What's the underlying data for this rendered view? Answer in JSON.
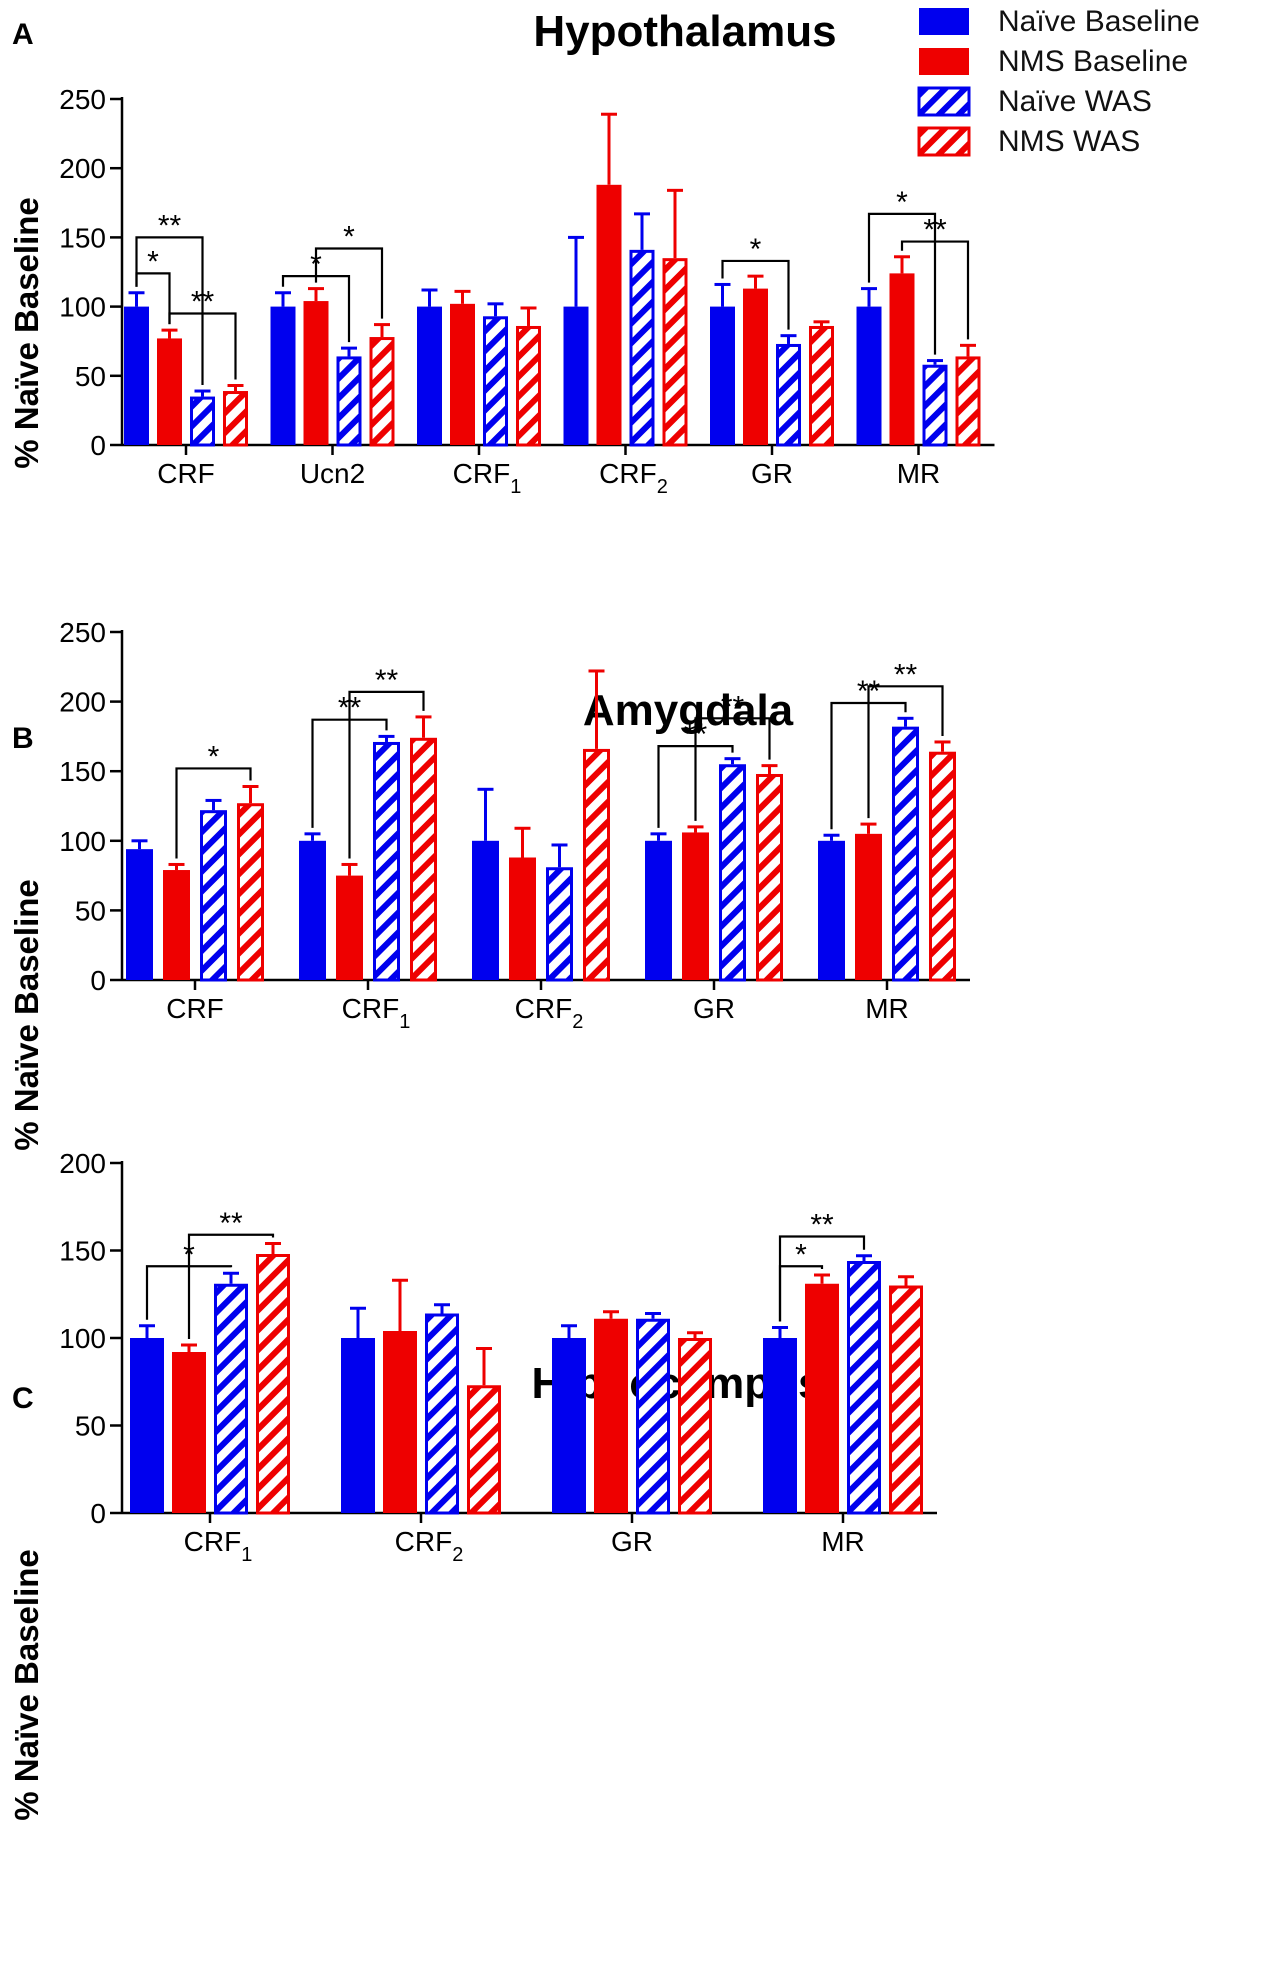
{
  "legend": {
    "items": [
      {
        "label": "Naïve Baseline",
        "color": "#0000ee",
        "hatched": false
      },
      {
        "label": "NMS Baseline",
        "color": "#ee0000",
        "hatched": false
      },
      {
        "label": "Naïve WAS",
        "color": "#0000ee",
        "hatched": true
      },
      {
        "label": "NMS WAS",
        "color": "#ee0000",
        "hatched": true
      }
    ]
  },
  "chart_data": [
    {
      "panel_label": "A",
      "type": "bar",
      "title": "Hypothalamus",
      "ylabel": "% Naïve Baseline",
      "ylim": [
        0,
        250
      ],
      "yticks": [
        0,
        50,
        100,
        150,
        200,
        250
      ],
      "categories": [
        {
          "base": "CRF",
          "sub": ""
        },
        {
          "base": "Ucn2",
          "sub": ""
        },
        {
          "base": "CRF",
          "sub": "1"
        },
        {
          "base": "CRF",
          "sub": "2"
        },
        {
          "base": "GR",
          "sub": ""
        },
        {
          "base": "MR",
          "sub": ""
        }
      ],
      "series": [
        {
          "name": "Naïve Baseline",
          "values": [
            100,
            100,
            100,
            100,
            100,
            100
          ],
          "errors": [
            10,
            10,
            12,
            50,
            16,
            13
          ]
        },
        {
          "name": "NMS Baseline",
          "values": [
            77,
            104,
            102,
            188,
            113,
            124
          ],
          "errors": [
            6,
            9,
            9,
            51,
            9,
            12
          ]
        },
        {
          "name": "Naïve WAS",
          "values": [
            35,
            64,
            93,
            141,
            73,
            58
          ],
          "errors": [
            4,
            6,
            9,
            26,
            6,
            3
          ]
        },
        {
          "name": "NMS WAS",
          "values": [
            39,
            78,
            86,
            135,
            86,
            64
          ],
          "errors": [
            4,
            9,
            13,
            49,
            3,
            8
          ]
        }
      ],
      "annotations": [
        {
          "label": "**",
          "cat": 0,
          "from": 0,
          "to": 2,
          "level": 150
        },
        {
          "label": "*",
          "cat": 0,
          "from": 0,
          "to": 1,
          "level": 124
        },
        {
          "label": "**",
          "cat": 0,
          "from": 1,
          "to": 3,
          "level": 95
        },
        {
          "label": "*",
          "cat": 1,
          "from": 1,
          "to": 3,
          "level": 142
        },
        {
          "label": "*",
          "cat": 1,
          "from": 0,
          "to": 2,
          "level": 122
        },
        {
          "label": "*",
          "cat": 4,
          "from": 0,
          "to": 2,
          "level": 133
        },
        {
          "label": "*",
          "cat": 5,
          "from": 0,
          "to": 2,
          "level": 167
        },
        {
          "label": "**",
          "cat": 5,
          "from": 1,
          "to": 3,
          "level": 147
        }
      ]
    },
    {
      "panel_label": "B",
      "type": "bar",
      "title": "Amygdala",
      "ylabel": "% Naïve Baseline",
      "ylim": [
        0,
        250
      ],
      "yticks": [
        0,
        50,
        100,
        150,
        200,
        250
      ],
      "categories": [
        {
          "base": "CRF",
          "sub": ""
        },
        {
          "base": "CRF",
          "sub": "1"
        },
        {
          "base": "CRF",
          "sub": "2"
        },
        {
          "base": "GR",
          "sub": ""
        },
        {
          "base": "MR",
          "sub": ""
        }
      ],
      "series": [
        {
          "name": "Naïve Baseline",
          "values": [
            94,
            100,
            100,
            100,
            100
          ],
          "errors": [
            6,
            5,
            37,
            5,
            4
          ]
        },
        {
          "name": "NMS Baseline",
          "values": [
            79,
            75,
            88,
            106,
            105
          ],
          "errors": [
            4,
            8,
            21,
            4,
            7
          ]
        },
        {
          "name": "Naïve WAS",
          "values": [
            122,
            171,
            81,
            155,
            182
          ],
          "errors": [
            7,
            4,
            16,
            4,
            6
          ]
        },
        {
          "name": "NMS WAS",
          "values": [
            127,
            174,
            166,
            148,
            164
          ],
          "errors": [
            12,
            15,
            56,
            6,
            7
          ]
        }
      ],
      "annotations": [
        {
          "label": "*",
          "cat": 0,
          "from": 1,
          "to": 3,
          "level": 152
        },
        {
          "label": "**",
          "cat": 1,
          "from": 1,
          "to": 3,
          "level": 207
        },
        {
          "label": "**",
          "cat": 1,
          "from": 0,
          "to": 2,
          "level": 187
        },
        {
          "label": "**",
          "cat": 3,
          "from": 1,
          "to": 3,
          "level": 188
        },
        {
          "label": "**",
          "cat": 3,
          "from": 0,
          "to": 2,
          "level": 168
        },
        {
          "label": "**",
          "cat": 4,
          "from": 1,
          "to": 3,
          "level": 211
        },
        {
          "label": "**",
          "cat": 4,
          "from": 0,
          "to": 2,
          "level": 199
        }
      ]
    },
    {
      "panel_label": "C",
      "type": "bar",
      "title": "Hippocampus",
      "ylabel": "% Naïve Baseline",
      "ylim": [
        0,
        200
      ],
      "yticks": [
        0,
        50,
        100,
        150,
        200
      ],
      "categories": [
        {
          "base": "CRF",
          "sub": "1"
        },
        {
          "base": "CRF",
          "sub": "2"
        },
        {
          "base": "GR",
          "sub": ""
        },
        {
          "base": "MR",
          "sub": ""
        }
      ],
      "series": [
        {
          "name": "Naïve Baseline",
          "values": [
            100,
            100,
            100,
            100
          ],
          "errors": [
            7,
            17,
            7,
            6
          ]
        },
        {
          "name": "NMS Baseline",
          "values": [
            92,
            104,
            111,
            131
          ],
          "errors": [
            4,
            29,
            4,
            5
          ]
        },
        {
          "name": "Naïve WAS",
          "values": [
            131,
            114,
            111,
            144
          ],
          "errors": [
            6,
            5,
            3,
            3
          ]
        },
        {
          "name": "NMS WAS",
          "values": [
            148,
            73,
            100,
            130
          ],
          "errors": [
            6,
            21,
            3,
            5
          ]
        }
      ],
      "annotations": [
        {
          "label": "**",
          "cat": 0,
          "from": 1,
          "to": 3,
          "level": 159
        },
        {
          "label": "*",
          "cat": 0,
          "from": 0,
          "to": 2,
          "level": 141
        },
        {
          "label": "**",
          "cat": 3,
          "from": 0,
          "to": 2,
          "level": 158
        },
        {
          "label": "*",
          "cat": 3,
          "from": 0,
          "to": 1,
          "level": 141
        }
      ]
    }
  ]
}
